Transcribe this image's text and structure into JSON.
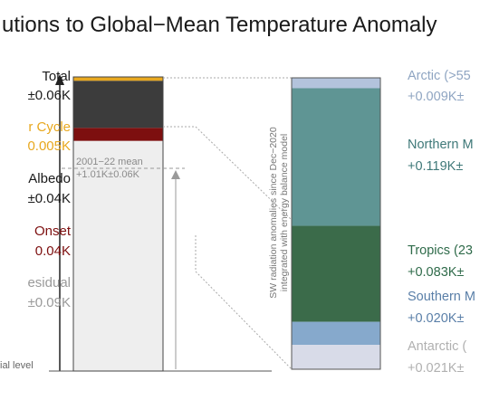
{
  "title": "utions to Global−Mean Temperature Anomaly",
  "colors": {
    "total": "#e8a81f",
    "dark": "#3c3c3c",
    "red": "#7d0f0f",
    "residual": "#eeeeee",
    "arctic": "#b3c3dc",
    "northern": "#5f9594",
    "tropics": "#3b6b4a",
    "southern": "#86a9cc",
    "antarctic": "#d8dbe8",
    "label_gray": "#8a8a8a",
    "label_green": "#2f6b4a",
    "label_blue": "#5a7fa8"
  },
  "left_labels": [
    {
      "name": "Total",
      "value": "±0.06K"
    },
    {
      "name": "r Cycle",
      "value": "0.005K"
    },
    {
      "name": "Albedo",
      "value": "±0.04K"
    },
    {
      "name": "Onset",
      "value": "0.04K"
    },
    {
      "name": "esidual",
      "value": "±0.09K"
    }
  ],
  "bottom_left": "ial level",
  "mean_annotation": [
    "2001−22 mean",
    "+1.01K±0.06K"
  ],
  "sw_note": [
    "SW radiation anomalies since Dec−2020",
    "integrated with energy balance model"
  ],
  "right_labels": [
    {
      "name": "Arctic (>55",
      "value": "+0.009K±"
    },
    {
      "name": "Northern M",
      "value": "+0.119K±"
    },
    {
      "name": "Tropics (23",
      "value": "+0.083K±"
    },
    {
      "name": "Southern M",
      "value": "+0.020K±"
    },
    {
      "name": "Antarctic (",
      "value": "+0.021K±"
    }
  ],
  "chart_data": {
    "type": "bar",
    "title": "utions to Global−Mean Temperature Anomaly",
    "left_bar": {
      "segments": [
        {
          "label": "Total",
          "value": 0.015
        },
        {
          "label": "",
          "value": 0.18
        },
        {
          "label": "",
          "value": 0.05
        },
        {
          "label": "esidual",
          "value": 0.88
        }
      ]
    },
    "right_bar": {
      "segments": [
        {
          "label": "Arctic (>55",
          "value": 0.009
        },
        {
          "label": "Northern M",
          "value": 0.119
        },
        {
          "label": "Tropics (23",
          "value": 0.083
        },
        {
          "label": "Southern M",
          "value": 0.02
        },
        {
          "label": "Antarctic (",
          "value": 0.021
        }
      ]
    }
  }
}
